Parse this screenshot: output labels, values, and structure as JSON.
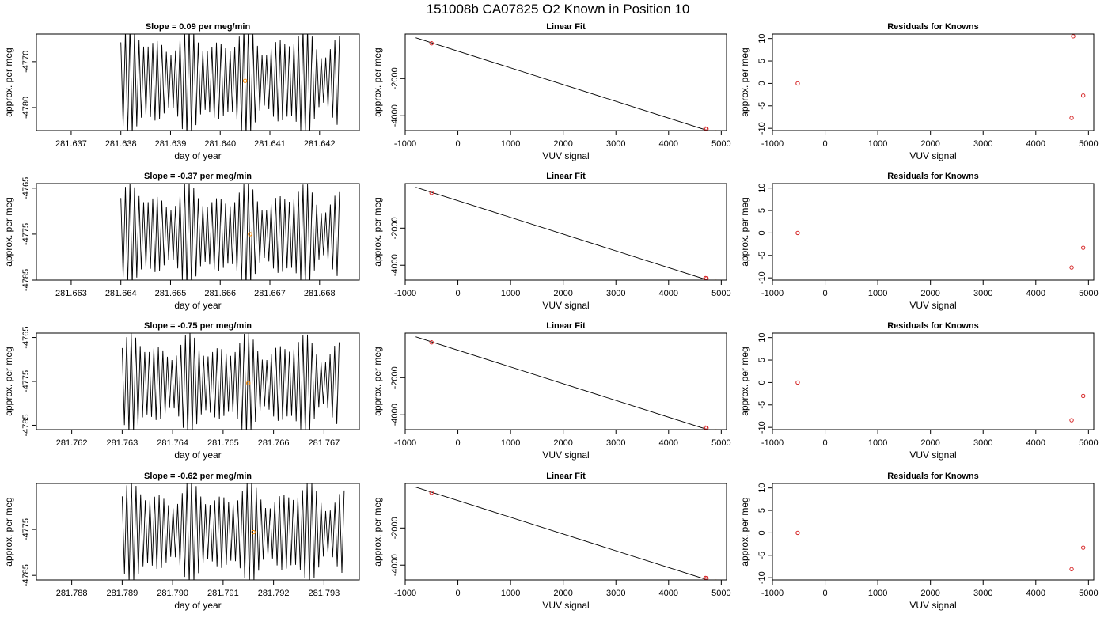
{
  "title": "151008b     CA07825   O2 Known in Position  10",
  "common": {
    "time_xlabel": "day of year",
    "ylabel": "approx. per meg",
    "fit_title": "Linear Fit",
    "fit_xlabel": "VUV signal",
    "resid_title": "Residuals for Knowns",
    "resid_xlabel": "VUV signal"
  },
  "rows": [
    {
      "slope_title": "Slope =  0.09  per meg/min"
    },
    {
      "slope_title": "Slope =  -0.37  per meg/min"
    },
    {
      "slope_title": "Slope =  -0.75  per meg/min"
    },
    {
      "slope_title": "Slope =  -0.62  per meg/min"
    }
  ],
  "chart_data": [
    {
      "type": "line",
      "panel": "time-series",
      "row": 1,
      "title": "Slope =  0.09  per meg/min",
      "xlabel": "day of year",
      "ylabel": "approx. per meg",
      "xlim": [
        281.6363,
        281.6428
      ],
      "ylim": [
        -4785,
        -4764
      ],
      "xticks": [
        281.637,
        281.638,
        281.639,
        281.64,
        281.641,
        281.642
      ],
      "yticks": [
        -4780,
        -4770
      ],
      "signal": {
        "x_start": 281.638,
        "x_end": 281.6424,
        "center": -4774.2,
        "amplitude": 11.2,
        "cycles": 48
      },
      "marker": {
        "x": 281.6405,
        "y": -4774.2,
        "color": "#ff8c00"
      }
    },
    {
      "type": "line",
      "panel": "time-series",
      "row": 2,
      "title": "Slope =  -0.37  per meg/min",
      "xlabel": "day of year",
      "ylabel": "approx. per meg",
      "xlim": [
        281.6623,
        281.6688
      ],
      "ylim": [
        -4785,
        -4764
      ],
      "xticks": [
        281.663,
        281.664,
        281.665,
        281.666,
        281.667,
        281.668
      ],
      "yticks": [
        -4785,
        -4775,
        -4765
      ],
      "signal": {
        "x_start": 281.664,
        "x_end": 281.6684,
        "center": -4775.1,
        "amplitude": 10.6,
        "cycles": 48
      },
      "marker": {
        "x": 281.6666,
        "y": -4775.0,
        "color": "#ff8c00"
      }
    },
    {
      "type": "line",
      "panel": "time-series",
      "row": 3,
      "title": "Slope =  -0.75  per meg/min",
      "xlabel": "day of year",
      "ylabel": "approx. per meg",
      "xlim": [
        281.7613,
        281.7677
      ],
      "ylim": [
        -4786,
        -4764
      ],
      "xticks": [
        281.762,
        281.763,
        281.764,
        281.765,
        281.766,
        281.767
      ],
      "yticks": [
        -4785,
        -4775,
        -4765
      ],
      "signal": {
        "x_start": 281.763,
        "x_end": 281.7673,
        "center": -4775.5,
        "amplitude": 10.8,
        "cycles": 48
      },
      "marker": {
        "x": 281.7655,
        "y": -4775.4,
        "color": "#ff8c00"
      }
    },
    {
      "type": "line",
      "panel": "time-series",
      "row": 4,
      "title": "Slope =  -0.62  per meg/min",
      "xlabel": "day of year",
      "ylabel": "approx. per meg",
      "xlim": [
        281.7873,
        281.7937
      ],
      "ylim": [
        -4786,
        -4765
      ],
      "xticks": [
        281.788,
        281.789,
        281.79,
        281.791,
        281.792,
        281.793
      ],
      "yticks": [
        -4785,
        -4775
      ],
      "signal": {
        "x_start": 281.789,
        "x_end": 281.7934,
        "center": -4775.6,
        "amplitude": 10.4,
        "cycles": 48
      },
      "marker": {
        "x": 281.7916,
        "y": -4775.6,
        "color": "#ff8c00"
      }
    },
    {
      "type": "scatter",
      "panel": "linear-fit",
      "row": 1,
      "title": "Linear Fit",
      "xlabel": "VUV signal",
      "ylabel": "approx. per meg",
      "xlim": [
        -1000,
        5100
      ],
      "ylim": [
        -4800,
        400
      ],
      "xticks": [
        -1000,
        0,
        1000,
        2000,
        3000,
        4000,
        5000
      ],
      "yticks": [
        -4000,
        -2000
      ],
      "line": [
        [
          -800,
          200
        ],
        [
          4900,
          -4940
        ]
      ],
      "points": [
        {
          "x": -500,
          "y": -100,
          "color": "#d62728"
        },
        {
          "x": 4700,
          "y": -4690,
          "color": "#d62728"
        },
        {
          "x": 4720,
          "y": -4710,
          "color": "#d62728"
        },
        {
          "x": 4900,
          "y": -4890,
          "color": "#ff8c00"
        }
      ]
    },
    {
      "type": "scatter",
      "panel": "linear-fit",
      "row": 2,
      "title": "Linear Fit",
      "xlabel": "VUV signal",
      "ylabel": "approx. per meg",
      "xlim": [
        -1000,
        5100
      ],
      "ylim": [
        -4800,
        400
      ],
      "xticks": [
        -1000,
        0,
        1000,
        2000,
        3000,
        4000,
        5000
      ],
      "yticks": [
        -4000,
        -2000
      ],
      "line": [
        [
          -800,
          200
        ],
        [
          4900,
          -4940
        ]
      ],
      "points": [
        {
          "x": -500,
          "y": -100,
          "color": "#d62728"
        },
        {
          "x": 4700,
          "y": -4690,
          "color": "#d62728"
        },
        {
          "x": 4720,
          "y": -4710,
          "color": "#d62728"
        },
        {
          "x": 4900,
          "y": -4890,
          "color": "#ff8c00"
        }
      ]
    },
    {
      "type": "scatter",
      "panel": "linear-fit",
      "row": 3,
      "title": "Linear Fit",
      "xlabel": "VUV signal",
      "ylabel": "approx. per meg",
      "xlim": [
        -1000,
        5100
      ],
      "ylim": [
        -4800,
        400
      ],
      "xticks": [
        -1000,
        0,
        1000,
        2000,
        3000,
        4000,
        5000
      ],
      "yticks": [
        -4000,
        -2000
      ],
      "line": [
        [
          -800,
          200
        ],
        [
          4900,
          -4940
        ]
      ],
      "points": [
        {
          "x": -500,
          "y": -100,
          "color": "#d62728"
        },
        {
          "x": 4700,
          "y": -4690,
          "color": "#d62728"
        },
        {
          "x": 4720,
          "y": -4710,
          "color": "#d62728"
        },
        {
          "x": 4900,
          "y": -4890,
          "color": "#ff8c00"
        }
      ]
    },
    {
      "type": "scatter",
      "panel": "linear-fit",
      "row": 4,
      "title": "Linear Fit",
      "xlabel": "VUV signal",
      "ylabel": "approx. per meg",
      "xlim": [
        -1000,
        5100
      ],
      "ylim": [
        -4800,
        400
      ],
      "xticks": [
        -1000,
        0,
        1000,
        2000,
        3000,
        4000,
        5000
      ],
      "yticks": [
        -4000,
        -2000
      ],
      "line": [
        [
          -800,
          200
        ],
        [
          4900,
          -4940
        ]
      ],
      "points": [
        {
          "x": -500,
          "y": -100,
          "color": "#d62728"
        },
        {
          "x": 4700,
          "y": -4690,
          "color": "#d62728"
        },
        {
          "x": 4720,
          "y": -4710,
          "color": "#d62728"
        },
        {
          "x": 4900,
          "y": -4890,
          "color": "#ff8c00"
        }
      ]
    },
    {
      "type": "scatter",
      "panel": "residuals",
      "row": 1,
      "title": "Residuals for Knowns",
      "xlabel": "VUV signal",
      "ylabel": "approx. per meg",
      "xlim": [
        -1000,
        5100
      ],
      "ylim": [
        -10.5,
        11
      ],
      "xticks": [
        -1000,
        0,
        1000,
        2000,
        3000,
        4000,
        5000
      ],
      "yticks": [
        -10,
        -5,
        0,
        5,
        10
      ],
      "points": [
        {
          "x": -520,
          "y": 0.0,
          "color": "#d62728"
        },
        {
          "x": 4680,
          "y": -7.7,
          "color": "#d62728"
        },
        {
          "x": 4710,
          "y": 10.5,
          "color": "#d62728"
        },
        {
          "x": 4900,
          "y": -2.7,
          "color": "#d62728"
        }
      ]
    },
    {
      "type": "scatter",
      "panel": "residuals",
      "row": 2,
      "title": "Residuals for Knowns",
      "xlabel": "VUV signal",
      "ylabel": "approx. per meg",
      "xlim": [
        -1000,
        5100
      ],
      "ylim": [
        -10.5,
        11
      ],
      "xticks": [
        -1000,
        0,
        1000,
        2000,
        3000,
        4000,
        5000
      ],
      "yticks": [
        -10,
        -5,
        0,
        5,
        10
      ],
      "points": [
        {
          "x": -520,
          "y": 0.0,
          "color": "#d62728"
        },
        {
          "x": 4680,
          "y": -7.7,
          "color": "#d62728"
        },
        {
          "x": 4900,
          "y": -3.3,
          "color": "#d62728"
        }
      ]
    },
    {
      "type": "scatter",
      "panel": "residuals",
      "row": 3,
      "title": "Residuals for Knowns",
      "xlabel": "VUV signal",
      "ylabel": "approx. per meg",
      "xlim": [
        -1000,
        5100
      ],
      "ylim": [
        -10.5,
        11
      ],
      "xticks": [
        -1000,
        0,
        1000,
        2000,
        3000,
        4000,
        5000
      ],
      "yticks": [
        -10,
        -5,
        0,
        5,
        10
      ],
      "points": [
        {
          "x": -520,
          "y": 0.0,
          "color": "#d62728"
        },
        {
          "x": 4680,
          "y": -8.4,
          "color": "#d62728"
        },
        {
          "x": 4900,
          "y": -3.0,
          "color": "#d62728"
        }
      ]
    },
    {
      "type": "scatter",
      "panel": "residuals",
      "row": 4,
      "title": "Residuals for Knowns",
      "xlabel": "VUV signal",
      "ylabel": "approx. per meg",
      "xlim": [
        -1000,
        5100
      ],
      "ylim": [
        -10.5,
        11
      ],
      "xticks": [
        -1000,
        0,
        1000,
        2000,
        3000,
        4000,
        5000
      ],
      "yticks": [
        -10,
        -5,
        0,
        5,
        10
      ],
      "points": [
        {
          "x": -520,
          "y": 0.0,
          "color": "#d62728"
        },
        {
          "x": 4680,
          "y": -8.1,
          "color": "#d62728"
        },
        {
          "x": 4900,
          "y": -3.3,
          "color": "#d62728"
        }
      ]
    }
  ]
}
